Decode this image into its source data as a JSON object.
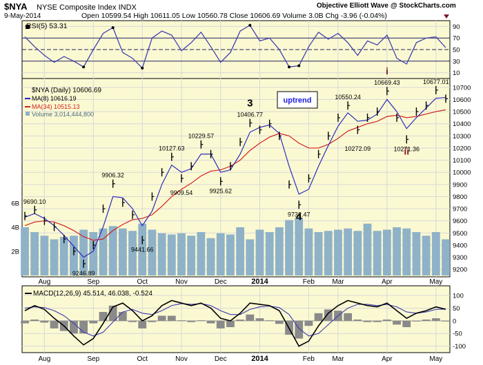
{
  "header": {
    "symbol": "$NYA",
    "name": "NYSE Composite Index  INDX",
    "date": "9-May-2014",
    "ohlc": "Open 10599.54  High 10611.05  Low 10560.78  Close 10606.69  Volume 3.0B  Chg -3.96 (-0.04%)",
    "credit": "Objective Elliott Wave",
    "watermark": "@ StockCharts.com"
  },
  "colors": {
    "panel_bg": "#fbf9d2",
    "frame": "#000000",
    "grid": "#d8d8d8",
    "price": "#000000",
    "ma8": "#2b2bbf",
    "ma34": "#d02020",
    "volume": "#8fb2c8",
    "rsi": "#4040b0",
    "macd_hist": "#8a8a8a",
    "wave_ii": "#7a1a2a",
    "uptrend_text": "#1a1ae0"
  },
  "rsi_panel": {
    "legend": "RSI(5) 53.31",
    "levels": [
      "90",
      "70",
      "50",
      "30",
      "10"
    ]
  },
  "price_panel": {
    "legend_title": "$NYA (Daily) 10606.69",
    "legend_ma8": "MA(8) 10616.19",
    "legend_ma34": "MA(34) 10515.13",
    "legend_volume": "Volume 3,014,444,800",
    "right_ticks": [
      "10700",
      "10600",
      "10500",
      "10400",
      "10300",
      "10200",
      "10100",
      "10000",
      "9900",
      "9800",
      "9700",
      "9600",
      "9500",
      "9400",
      "9300",
      "9200"
    ],
    "vol_ticks": [
      "6B",
      "4B",
      "2B"
    ],
    "box_label": "uptrend"
  },
  "macd_panel": {
    "legend": "MACD(12,26,9) 45.514, 46.038, -0.524",
    "right_ticks": [
      "100",
      "50",
      "0",
      "-50",
      "-100"
    ]
  },
  "x_labels": [
    "Aug",
    "Sep",
    "Oct",
    "Nov",
    "Dec",
    "2014",
    "Feb",
    "Mar",
    "Apr",
    "May"
  ],
  "chart_data": {
    "type": "line",
    "title": "$NYA NYSE Composite Index INDX",
    "x": [
      "2013-07-18",
      "2013-07-25",
      "2013-08-01",
      "2013-08-08",
      "2013-08-15",
      "2013-08-22",
      "2013-08-27",
      "2013-09-05",
      "2013-09-12",
      "2013-09-19",
      "2013-09-26",
      "2013-10-03",
      "2013-10-09",
      "2013-10-17",
      "2013-10-24",
      "2013-10-31",
      "2013-11-07",
      "2013-11-14",
      "2013-11-21",
      "2013-11-29",
      "2013-12-06",
      "2013-12-13",
      "2013-12-20",
      "2013-12-31",
      "2014-01-08",
      "2014-01-15",
      "2014-01-22",
      "2014-01-29",
      "2014-02-03",
      "2014-02-10",
      "2014-02-17",
      "2014-02-24",
      "2014-03-03",
      "2014-03-07",
      "2014-03-14",
      "2014-03-21",
      "2014-03-28",
      "2014-04-03",
      "2014-04-08",
      "2014-04-11",
      "2014-04-17",
      "2014-04-24",
      "2014-05-01",
      "2014-05-09"
    ],
    "series": [
      {
        "name": "$NYA (Daily)",
        "values": [
          9640,
          9690.1,
          9600,
          9550,
          9450,
          9350,
          9246.89,
          9400,
          9700,
          9906.32,
          9750,
          9650,
          9441.66,
          9800,
          10000,
          10127.63,
          9950,
          10050,
          10229.57,
          10150,
          9925.62,
          10050,
          10250,
          10406.77,
          10350,
          10400,
          10300,
          9900,
          9732.47,
          9950,
          10150,
          10300,
          10450,
          10550.24,
          10350,
          10450,
          10500,
          10669.43,
          10450,
          10271.36,
          10500,
          10550,
          10677.01,
          10606.69
        ]
      },
      {
        "name": "MA(8)",
        "values": [
          9630,
          9660,
          9620,
          9560,
          9480,
          9390,
          9300,
          9350,
          9550,
          9800,
          9790,
          9700,
          9560,
          9680,
          9900,
          10060,
          10000,
          10030,
          10150,
          10150,
          10000,
          10020,
          10150,
          10330,
          10370,
          10390,
          10320,
          10050,
          9820,
          9860,
          10050,
          10220,
          10380,
          10490,
          10420,
          10430,
          10480,
          10600,
          10500,
          10360,
          10450,
          10530,
          10610,
          10616.19
        ]
      },
      {
        "name": "MA(34)",
        "values": [
          9560,
          9590,
          9600,
          9590,
          9560,
          9520,
          9470,
          9440,
          9450,
          9520,
          9570,
          9610,
          9620,
          9650,
          9720,
          9800,
          9860,
          9910,
          9970,
          10010,
          10020,
          10050,
          10100,
          10180,
          10240,
          10290,
          10320,
          10300,
          10240,
          10200,
          10200,
          10230,
          10280,
          10340,
          10370,
          10400,
          10420,
          10460,
          10470,
          10450,
          10460,
          10480,
          10500,
          10515.13
        ]
      }
    ],
    "annotations": [
      {
        "text": "9690.10",
        "x": "2013-07-25",
        "y": 9690.1
      },
      {
        "text": "9246.89",
        "x": "2013-08-27",
        "y": 9246.89
      },
      {
        "text": "9906.32",
        "x": "2013-09-19",
        "y": 9906.32
      },
      {
        "text": "9441.66",
        "x": "2013-10-09",
        "y": 9441.66
      },
      {
        "text": "10127.63",
        "x": "2013-10-31",
        "y": 10127.63
      },
      {
        "text": "9909.54",
        "x": "2013-11-07",
        "y": 9909.54
      },
      {
        "text": "10229.57",
        "x": "2013-11-21",
        "y": 10229.57
      },
      {
        "text": "9925.62",
        "x": "2013-12-06",
        "y": 9925.62
      },
      {
        "text": "3",
        "x": "2013-12-31",
        "y": 10406.77
      },
      {
        "text": "10406.77",
        "x": "2013-12-31",
        "y": 10406.77
      },
      {
        "text": "9732.47",
        "x": "2014-02-03",
        "y": 9732.47
      },
      {
        "text": "4",
        "x": "2014-02-03",
        "y": 9732.47
      },
      {
        "text": "10550.24",
        "x": "2014-03-07",
        "y": 10550.24
      },
      {
        "text": "10272.09",
        "x": "2014-03-14",
        "y": 10272.09
      },
      {
        "text": "i",
        "x": "2014-04-03",
        "y": 10669.43
      },
      {
        "text": "10669.43",
        "x": "2014-04-03",
        "y": 10669.43
      },
      {
        "text": "10271.36",
        "x": "2014-04-11",
        "y": 10271.36
      },
      {
        "text": "ii",
        "x": "2014-04-11",
        "y": 10271.36
      },
      {
        "text": "10677.01",
        "x": "2014-05-01",
        "y": 10677.01
      }
    ],
    "ylim": [
      9150,
      10750
    ],
    "volume_ylim": [
      0,
      8
    ],
    "volume_values": [
      4.0,
      3.6,
      3.3,
      3.0,
      3.2,
      3.3,
      3.8,
      3.6,
      3.9,
      4.1,
      3.9,
      3.7,
      4.3,
      3.8,
      3.5,
      3.4,
      3.5,
      3.3,
      3.6,
      3.1,
      3.5,
      3.4,
      4.0,
      3.0,
      3.8,
      3.6,
      4.0,
      4.6,
      4.8,
      3.9,
      3.6,
      3.7,
      3.8,
      3.9,
      3.7,
      4.3,
      3.7,
      3.8,
      4.0,
      3.9,
      3.6,
      3.3,
      3.6,
      3.0
    ],
    "rsi": {
      "name": "RSI(5)",
      "ylim": [
        0,
        100
      ],
      "values": [
        72,
        55,
        40,
        28,
        38,
        30,
        20,
        50,
        78,
        88,
        45,
        35,
        18,
        70,
        82,
        75,
        48,
        62,
        80,
        55,
        28,
        45,
        82,
        92,
        65,
        70,
        50,
        20,
        22,
        55,
        80,
        68,
        78,
        62,
        40,
        65,
        58,
        75,
        35,
        25,
        62,
        70,
        72,
        53.31
      ]
    },
    "macd": {
      "name": "MACD(12,26,9)",
      "ylim": [
        -120,
        130
      ],
      "macd": [
        40,
        60,
        45,
        10,
        -20,
        -60,
        -95,
        -70,
        -10,
        55,
        70,
        40,
        0,
        20,
        60,
        80,
        70,
        60,
        70,
        50,
        10,
        0,
        30,
        70,
        65,
        60,
        40,
        -30,
        -100,
        -80,
        -20,
        30,
        60,
        80,
        70,
        60,
        55,
        70,
        40,
        10,
        30,
        40,
        55,
        45.514
      ],
      "signal": [
        50,
        55,
        52,
        40,
        20,
        -10,
        -45,
        -60,
        -45,
        -5,
        35,
        45,
        30,
        25,
        40,
        60,
        68,
        65,
        68,
        60,
        40,
        25,
        25,
        45,
        55,
        58,
        52,
        25,
        -30,
        -60,
        -50,
        -15,
        20,
        50,
        65,
        65,
        60,
        65,
        55,
        35,
        30,
        35,
        45,
        46.038
      ]
    }
  }
}
